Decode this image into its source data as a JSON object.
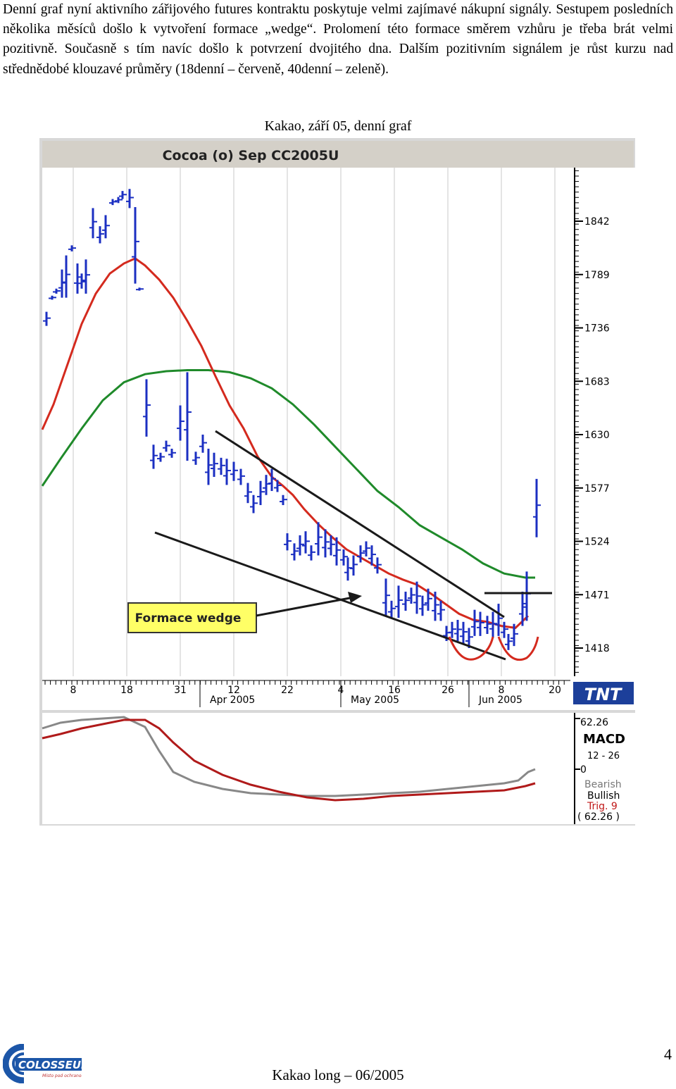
{
  "intro_text": "Denní graf nyní aktivního zářijového futures kontraktu poskytuje velmi zajímavé nákupní signály. Sestupem posledních několika měsíců došlo k vytvoření formace „wedge“. Prolomení této formace směrem vzhůru je třeba brát velmi pozitivně. Současně s tím navíc došlo k potvrzení dvojitého dna. Dalším pozitivním signálem je růst kurzu nad střednědobé klouzavé průměry (18denní – červeně, 40denní – zeleně).",
  "figure_caption": "Kakao, září 05, denní graf",
  "chart_data": {
    "type": "bar",
    "title": "Cocoa (o) Sep CC2005U",
    "y_ticks": [
      "1842",
      "1789",
      "1736",
      "1683",
      "1630",
      "1577",
      "1524",
      "1471",
      "1418"
    ],
    "x_ticks": [
      "8",
      "18",
      "31",
      "12",
      "22",
      "4",
      "16",
      "26",
      "8",
      "20"
    ],
    "x_month_labels": [
      "Apr 2005",
      "May 2005",
      "Jun 2005"
    ],
    "annotation": "Formace wedge",
    "watermark": "TNT",
    "ylim": [
      1380,
      1895
    ],
    "moving_averages": [
      {
        "name": "18denní",
        "color": "#d42a1e"
      },
      {
        "name": "40denní",
        "color": "#1f8a2a"
      }
    ],
    "price_color": "#1b2fc2",
    "macd_panel": {
      "title": "MACD",
      "params": "12 - 26",
      "top_value": "62.26",
      "zero_label": "0",
      "legend_bearish": "Bearish",
      "legend_bullish": "Bullish",
      "legend_trig": "Trig. 9",
      "legend_value": "( 62.26 )",
      "macd_color": "#888888",
      "signal_color": "#b01a1a"
    }
  },
  "footer_text": "Kakao long – 06/2005",
  "page_number": "4",
  "logo": {
    "name": "COLOSSEUM",
    "tagline": "Místo pod ochranou"
  }
}
